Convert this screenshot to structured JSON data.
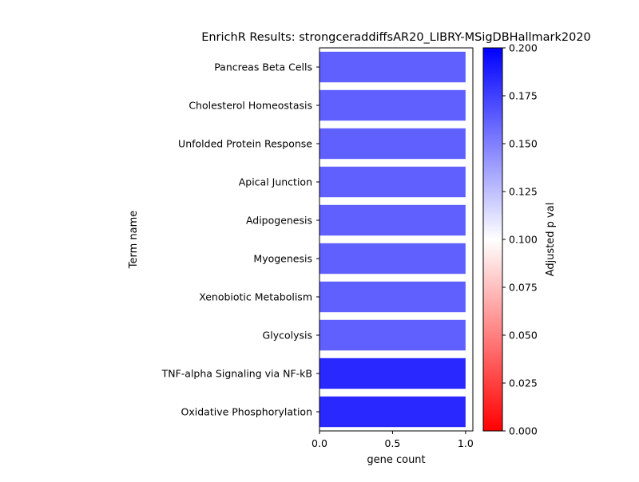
{
  "chart_data": {
    "type": "bar",
    "orientation": "horizontal",
    "title": "EnrichR Results: strongceraddiffsAR20_LIBRY-MSigDBHallmark2020",
    "xlabel": "gene count",
    "ylabel": "Term name",
    "categories": [
      "Pancreas Beta Cells",
      "Cholesterol Homeostasis",
      "Unfolded Protein Response",
      "Apical Junction",
      "Adipogenesis",
      "Myogenesis",
      "Xenobiotic Metabolism",
      "Glycolysis",
      "TNF-alpha Signaling via NF-kB",
      "Oxidative Phosphorylation"
    ],
    "values": [
      1,
      1,
      1,
      1,
      1,
      1,
      1,
      1,
      1,
      1
    ],
    "adjusted_p": [
      0.1625,
      0.1625,
      0.1625,
      0.1625,
      0.1625,
      0.1625,
      0.1625,
      0.1625,
      0.1844,
      0.1844
    ],
    "xlim": [
      0,
      1.05
    ],
    "xticks": [
      "0.0",
      "0.5",
      "1.0"
    ],
    "grid": false,
    "colorbar": {
      "label": "Adjusted p val",
      "range": [
        0,
        0.2
      ],
      "ticks": [
        "0.000",
        "0.025",
        "0.050",
        "0.075",
        "0.100",
        "0.125",
        "0.150",
        "0.175",
        "0.200"
      ],
      "colormap": [
        "#ff0000",
        "#ffffff",
        "#0000ff"
      ]
    }
  }
}
